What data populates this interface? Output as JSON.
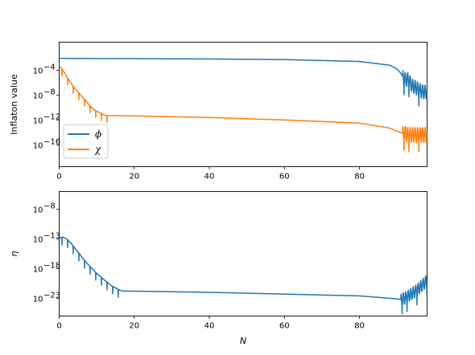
{
  "colors": {
    "phi": "#1f77b4",
    "chi": "#ff7f0e",
    "eta": "#1f77b4"
  },
  "chart_data": [
    {
      "type": "line",
      "ylabel": "Inflaton value",
      "xlabel": "",
      "yscale": "log",
      "xlim": [
        0,
        98
      ],
      "ylim_exp": [
        -19.5,
        0.5
      ],
      "xticks": [
        0,
        20,
        40,
        60,
        80
      ],
      "xtick_labels": [
        "0",
        "20",
        "40",
        "60",
        "80"
      ],
      "yticks_exp": [
        -4,
        -8,
        -12,
        -16
      ],
      "ytick_labels": [
        "10",
        "10",
        "10",
        "10"
      ],
      "ytick_exp_labels": [
        "−4",
        "−8",
        "−12",
        "−16"
      ],
      "legend": {
        "position": "lower left",
        "entries": [
          "ϕ",
          "χ"
        ]
      },
      "series": [
        {
          "name": "ϕ",
          "color_key": "phi",
          "x": [
            0,
            20,
            40,
            60,
            80,
            88,
            90,
            91,
            91.5,
            92,
            93,
            94,
            95,
            96,
            97,
            98
          ],
          "log10_y": [
            -2.1,
            -2.15,
            -2.2,
            -2.3,
            -2.6,
            -3.2,
            -3.8,
            -4.5,
            -5.0,
            -5.5,
            -5.5,
            -6.5,
            -6.8,
            -7.2,
            -7.5,
            -7.5
          ],
          "oscillation_start": 91.5
        },
        {
          "name": "χ",
          "color_key": "chi",
          "x": [
            0,
            1,
            2,
            3,
            4,
            5,
            6,
            7,
            8,
            9,
            10,
            11,
            12,
            13,
            20,
            40,
            60,
            80,
            88,
            90,
            91,
            92,
            93,
            95,
            98
          ],
          "log10_y": [
            -3.3,
            -4.0,
            -5.0,
            -6.0,
            -6.8,
            -7.5,
            -8.2,
            -8.8,
            -9.6,
            -10.2,
            -10.6,
            -10.9,
            -11.2,
            -11.3,
            -11.35,
            -11.6,
            -12.0,
            -12.5,
            -13.3,
            -13.8,
            -14.0,
            -14.2,
            -14.4,
            -14.4,
            -14.4
          ],
          "oscillation_start": 91.5
        }
      ]
    },
    {
      "type": "line",
      "ylabel": "η",
      "xlabel": "N",
      "yscale": "log",
      "xlim": [
        0,
        98
      ],
      "ylim_exp": [
        -26,
        -5
      ],
      "xticks": [
        0,
        20,
        40,
        60,
        80
      ],
      "xtick_labels": [
        "0",
        "20",
        "40",
        "60",
        "80"
      ],
      "yticks_exp": [
        -8,
        -13,
        -18,
        -23
      ],
      "ytick_labels": [
        "10",
        "10",
        "10",
        "10"
      ],
      "ytick_exp_labels": [
        "−8",
        "−13",
        "−18",
        "−23"
      ],
      "series": [
        {
          "color_key": "eta",
          "x": [
            0,
            1,
            2,
            3,
            4,
            5,
            6,
            7,
            8,
            10,
            12,
            14,
            16,
            17,
            18,
            20,
            40,
            60,
            80,
            88,
            90,
            91,
            92,
            93,
            95,
            98
          ],
          "log10_y": [
            -12.8,
            -12.7,
            -13.0,
            -13.6,
            -14.4,
            -15.2,
            -16.0,
            -16.8,
            -17.5,
            -18.8,
            -19.9,
            -20.9,
            -21.6,
            -21.8,
            -21.8,
            -21.8,
            -22.0,
            -22.3,
            -22.6,
            -23.0,
            -23.1,
            -23.2,
            -23.0,
            -22.6,
            -21.8,
            -20.0
          ],
          "oscillation_start": 91
        }
      ]
    }
  ]
}
